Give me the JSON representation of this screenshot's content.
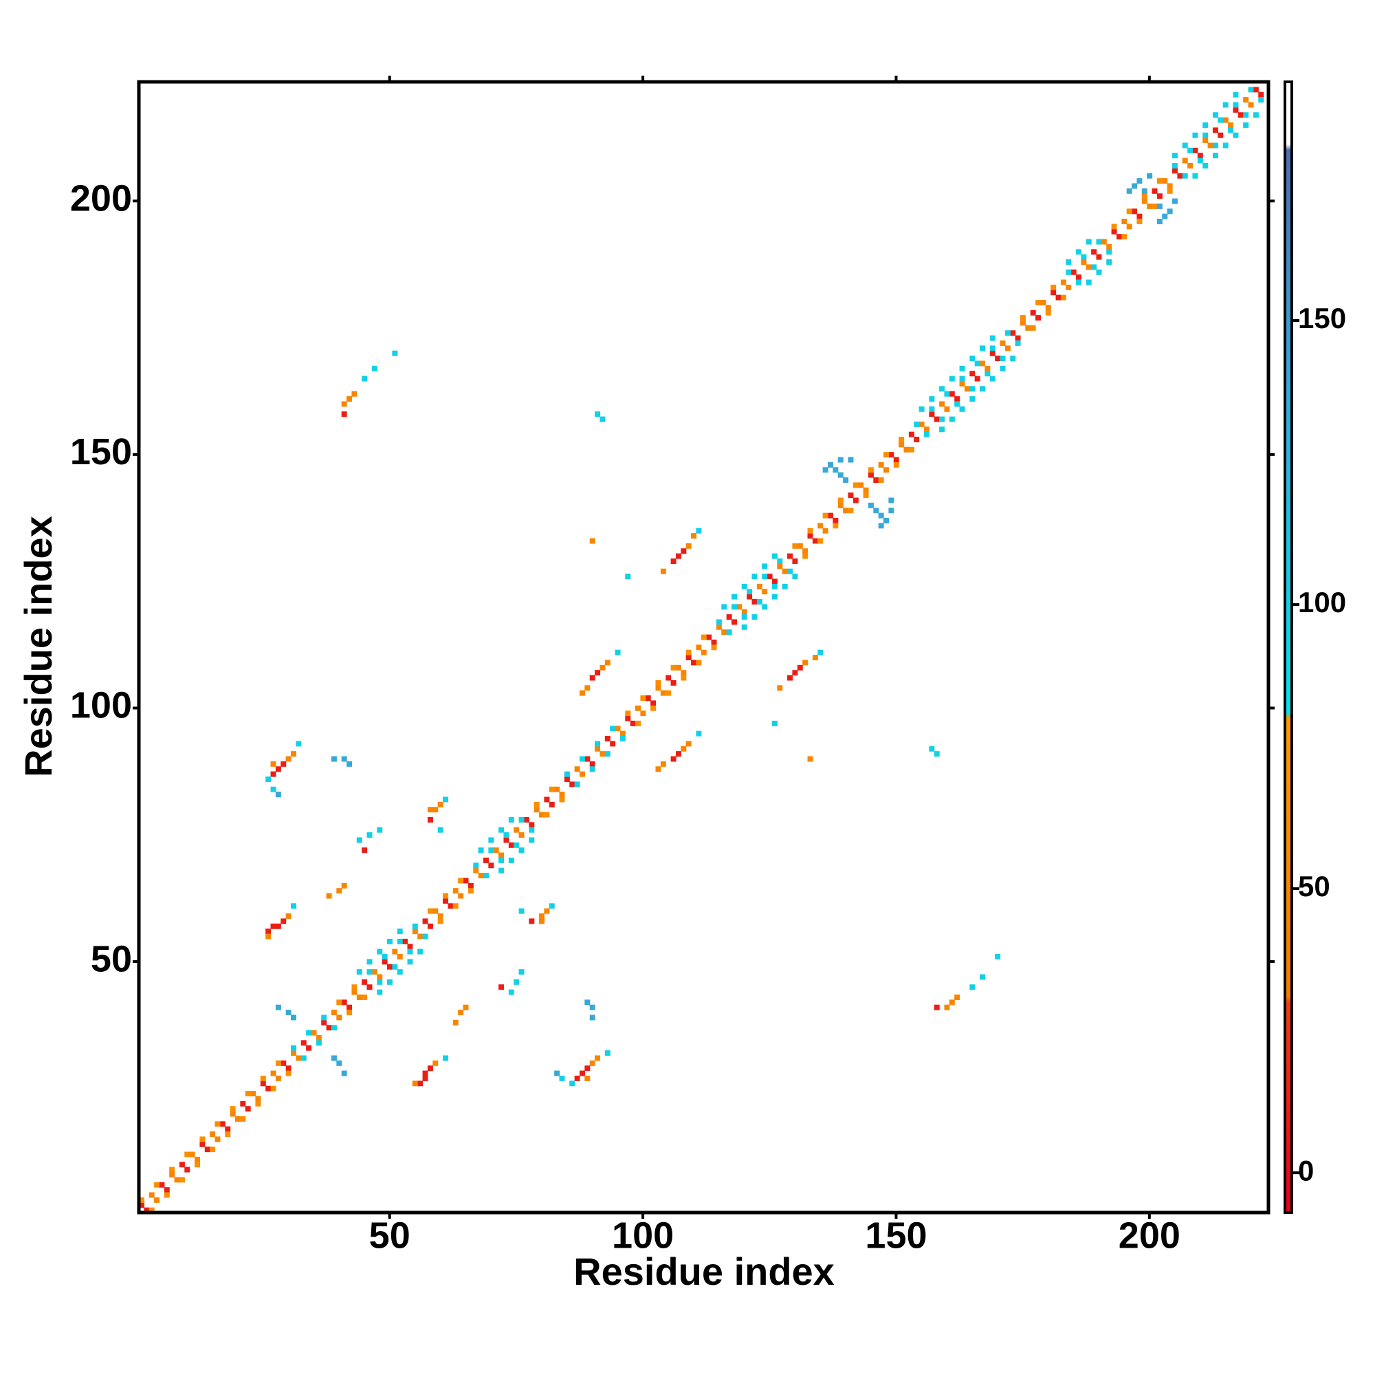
{
  "chart_data": {
    "type": "heatmap",
    "symmetric": true,
    "x_label": "Residue index",
    "y_label": "Residue index",
    "xlim": [
      0.5,
      223.5
    ],
    "ylim": [
      0.5,
      223.5
    ],
    "xticks": [
      50,
      100,
      150,
      200
    ],
    "yticks": [
      50,
      100,
      150,
      200
    ],
    "zlim": [
      -7,
      192
    ],
    "zticks": [
      0,
      50,
      100,
      150
    ],
    "colorscale": [
      {
        "value": -7,
        "color": "#e6001a"
      },
      {
        "value": 30,
        "color": "#f04010"
      },
      {
        "value": 31,
        "color": "#f57c00"
      },
      {
        "value": 80,
        "color": "#ff9a00"
      },
      {
        "value": 81,
        "color": "#00e5ee"
      },
      {
        "value": 140,
        "color": "#38a8d8"
      },
      {
        "value": 180,
        "color": "#4b6fb0"
      },
      {
        "value": 181,
        "color": "#ffffff"
      },
      {
        "value": 192,
        "color": "#ffffff"
      }
    ],
    "cells": [
      [
        1,
        2,
        10
      ],
      [
        3,
        4,
        45
      ],
      [
        5,
        6,
        10
      ],
      [
        7,
        8,
        45
      ],
      [
        9,
        10,
        10
      ],
      [
        11,
        12,
        45
      ],
      [
        13,
        14,
        10
      ],
      [
        15,
        16,
        45
      ],
      [
        17,
        18,
        10
      ],
      [
        19,
        20,
        45
      ],
      [
        21,
        22,
        10
      ],
      [
        23,
        24,
        45
      ],
      [
        25,
        26,
        10
      ],
      [
        27,
        28,
        45
      ],
      [
        29,
        30,
        10
      ],
      [
        31,
        32,
        45
      ],
      [
        33,
        34,
        10
      ],
      [
        35,
        36,
        45
      ],
      [
        37,
        38,
        10
      ],
      [
        39,
        40,
        45
      ],
      [
        41,
        42,
        10
      ],
      [
        43,
        44,
        45
      ],
      [
        45,
        46,
        10
      ],
      [
        47,
        48,
        45
      ],
      [
        49,
        50,
        10
      ],
      [
        51,
        52,
        45
      ],
      [
        53,
        54,
        10
      ],
      [
        55,
        56,
        45
      ],
      [
        57,
        58,
        10
      ],
      [
        59,
        60,
        45
      ],
      [
        61,
        62,
        10
      ],
      [
        63,
        64,
        45
      ],
      [
        65,
        66,
        10
      ],
      [
        67,
        68,
        45
      ],
      [
        69,
        70,
        10
      ],
      [
        71,
        72,
        45
      ],
      [
        73,
        74,
        10
      ],
      [
        75,
        76,
        45
      ],
      [
        77,
        78,
        10
      ],
      [
        79,
        80,
        45
      ],
      [
        81,
        82,
        10
      ],
      [
        83,
        84,
        45
      ],
      [
        85,
        86,
        10
      ],
      [
        87,
        88,
        45
      ],
      [
        89,
        90,
        10
      ],
      [
        91,
        92,
        45
      ],
      [
        93,
        94,
        10
      ],
      [
        95,
        96,
        45
      ],
      [
        97,
        98,
        10
      ],
      [
        99,
        100,
        45
      ],
      [
        101,
        102,
        10
      ],
      [
        103,
        104,
        45
      ],
      [
        105,
        106,
        10
      ],
      [
        107,
        108,
        45
      ],
      [
        109,
        110,
        10
      ],
      [
        111,
        112,
        45
      ],
      [
        113,
        114,
        10
      ],
      [
        115,
        116,
        45
      ],
      [
        117,
        118,
        10
      ],
      [
        119,
        120,
        45
      ],
      [
        121,
        122,
        10
      ],
      [
        123,
        124,
        45
      ],
      [
        125,
        126,
        10
      ],
      [
        127,
        128,
        45
      ],
      [
        129,
        130,
        10
      ],
      [
        131,
        132,
        45
      ],
      [
        133,
        134,
        10
      ],
      [
        135,
        136,
        45
      ],
      [
        137,
        138,
        10
      ],
      [
        139,
        140,
        45
      ],
      [
        141,
        142,
        10
      ],
      [
        143,
        144,
        45
      ],
      [
        145,
        146,
        10
      ],
      [
        147,
        148,
        45
      ],
      [
        149,
        150,
        10
      ],
      [
        151,
        152,
        45
      ],
      [
        153,
        154,
        10
      ],
      [
        155,
        156,
        45
      ],
      [
        157,
        158,
        10
      ],
      [
        159,
        160,
        45
      ],
      [
        161,
        162,
        10
      ],
      [
        163,
        164,
        45
      ],
      [
        165,
        166,
        10
      ],
      [
        167,
        168,
        45
      ],
      [
        169,
        170,
        10
      ],
      [
        171,
        172,
        45
      ],
      [
        173,
        174,
        10
      ],
      [
        175,
        176,
        45
      ],
      [
        177,
        178,
        10
      ],
      [
        179,
        180,
        45
      ],
      [
        181,
        182,
        10
      ],
      [
        183,
        184,
        45
      ],
      [
        185,
        186,
        10
      ],
      [
        187,
        188,
        45
      ],
      [
        189,
        190,
        10
      ],
      [
        191,
        192,
        45
      ],
      [
        193,
        194,
        10
      ],
      [
        195,
        196,
        45
      ],
      [
        197,
        198,
        10
      ],
      [
        199,
        200,
        45
      ],
      [
        201,
        202,
        10
      ],
      [
        203,
        204,
        45
      ],
      [
        205,
        206,
        10
      ],
      [
        207,
        208,
        45
      ],
      [
        209,
        210,
        10
      ],
      [
        211,
        212,
        45
      ],
      [
        213,
        214,
        10
      ],
      [
        215,
        216,
        45
      ],
      [
        217,
        218,
        10
      ],
      [
        219,
        220,
        45
      ],
      [
        221,
        222,
        10
      ],
      [
        1,
        3,
        60
      ],
      [
        4,
        6,
        60
      ],
      [
        7,
        9,
        60
      ],
      [
        10,
        12,
        60
      ],
      [
        13,
        15,
        60
      ],
      [
        16,
        18,
        60
      ],
      [
        19,
        21,
        60
      ],
      [
        22,
        24,
        60
      ],
      [
        25,
        27,
        60
      ],
      [
        28,
        30,
        60
      ],
      [
        31,
        33,
        100
      ],
      [
        34,
        36,
        100
      ],
      [
        37,
        39,
        100
      ],
      [
        40,
        42,
        60
      ],
      [
        43,
        45,
        60
      ],
      [
        46,
        48,
        100
      ],
      [
        49,
        51,
        100
      ],
      [
        52,
        54,
        100
      ],
      [
        55,
        57,
        100
      ],
      [
        58,
        60,
        60
      ],
      [
        61,
        63,
        60
      ],
      [
        64,
        66,
        60
      ],
      [
        67,
        69,
        100
      ],
      [
        70,
        72,
        100
      ],
      [
        73,
        75,
        100
      ],
      [
        76,
        78,
        100
      ],
      [
        79,
        81,
        60
      ],
      [
        82,
        84,
        60
      ],
      [
        85,
        87,
        100
      ],
      [
        88,
        90,
        100
      ],
      [
        91,
        93,
        100
      ],
      [
        94,
        96,
        100
      ],
      [
        97,
        99,
        60
      ],
      [
        100,
        102,
        60
      ],
      [
        103,
        105,
        60
      ],
      [
        106,
        108,
        60
      ],
      [
        109,
        111,
        60
      ],
      [
        112,
        114,
        60
      ],
      [
        115,
        117,
        100
      ],
      [
        118,
        120,
        100
      ],
      [
        121,
        123,
        100
      ],
      [
        124,
        126,
        100
      ],
      [
        127,
        129,
        100
      ],
      [
        130,
        132,
        60
      ],
      [
        133,
        135,
        60
      ],
      [
        136,
        138,
        60
      ],
      [
        139,
        141,
        60
      ],
      [
        142,
        144,
        60
      ],
      [
        145,
        147,
        60
      ],
      [
        148,
        150,
        60
      ],
      [
        151,
        153,
        60
      ],
      [
        154,
        156,
        100
      ],
      [
        157,
        159,
        100
      ],
      [
        160,
        162,
        100
      ],
      [
        163,
        165,
        100
      ],
      [
        166,
        168,
        100
      ],
      [
        169,
        171,
        100
      ],
      [
        172,
        174,
        100
      ],
      [
        175,
        177,
        60
      ],
      [
        178,
        180,
        60
      ],
      [
        181,
        183,
        60
      ],
      [
        184,
        186,
        100
      ],
      [
        187,
        189,
        100
      ],
      [
        190,
        192,
        100
      ],
      [
        193,
        195,
        60
      ],
      [
        196,
        198,
        60
      ],
      [
        199,
        201,
        60
      ],
      [
        202,
        204,
        60
      ],
      [
        205,
        207,
        100
      ],
      [
        208,
        210,
        100
      ],
      [
        211,
        213,
        100
      ],
      [
        214,
        216,
        100
      ],
      [
        217,
        219,
        100
      ],
      [
        220,
        222,
        100
      ],
      [
        44,
        48,
        100
      ],
      [
        46,
        50,
        100
      ],
      [
        48,
        52,
        100
      ],
      [
        50,
        54,
        100
      ],
      [
        52,
        56,
        100
      ],
      [
        68,
        72,
        100
      ],
      [
        70,
        74,
        100
      ],
      [
        72,
        76,
        100
      ],
      [
        74,
        78,
        100
      ],
      [
        116,
        120,
        100
      ],
      [
        118,
        122,
        100
      ],
      [
        120,
        124,
        100
      ],
      [
        122,
        126,
        100
      ],
      [
        124,
        128,
        100
      ],
      [
        126,
        130,
        100
      ],
      [
        155,
        159,
        100
      ],
      [
        157,
        161,
        100
      ],
      [
        159,
        163,
        100
      ],
      [
        161,
        165,
        100
      ],
      [
        163,
        167,
        100
      ],
      [
        165,
        169,
        100
      ],
      [
        167,
        171,
        100
      ],
      [
        169,
        173,
        100
      ],
      [
        184,
        188,
        100
      ],
      [
        186,
        190,
        100
      ],
      [
        188,
        192,
        100
      ],
      [
        205,
        209,
        100
      ],
      [
        207,
        211,
        100
      ],
      [
        209,
        213,
        100
      ],
      [
        211,
        215,
        100
      ],
      [
        213,
        217,
        100
      ],
      [
        215,
        219,
        100
      ],
      [
        217,
        221,
        100
      ],
      [
        27,
        87,
        10
      ],
      [
        28,
        88,
        10
      ],
      [
        29,
        89,
        10
      ],
      [
        30,
        90,
        45
      ],
      [
        31,
        91,
        45
      ],
      [
        27,
        89,
        45
      ],
      [
        26,
        86,
        100
      ],
      [
        27,
        84,
        100
      ],
      [
        28,
        83,
        140
      ],
      [
        32,
        93,
        100
      ],
      [
        26,
        56,
        10
      ],
      [
        27,
        57,
        10
      ],
      [
        28,
        57,
        10
      ],
      [
        29,
        58,
        10
      ],
      [
        30,
        59,
        45
      ],
      [
        26,
        55,
        45
      ],
      [
        31,
        61,
        100
      ],
      [
        58,
        78,
        10
      ],
      [
        59,
        80,
        45
      ],
      [
        60,
        81,
        45
      ],
      [
        58,
        80,
        45
      ],
      [
        61,
        82,
        100
      ],
      [
        60,
        76,
        100
      ],
      [
        89,
        104,
        45
      ],
      [
        90,
        106,
        10
      ],
      [
        91,
        107,
        10
      ],
      [
        92,
        108,
        45
      ],
      [
        93,
        109,
        45
      ],
      [
        95,
        111,
        100
      ],
      [
        88,
        103,
        45
      ],
      [
        106,
        129,
        10
      ],
      [
        107,
        130,
        10
      ],
      [
        108,
        131,
        10
      ],
      [
        109,
        132,
        45
      ],
      [
        110,
        134,
        45
      ],
      [
        111,
        135,
        100
      ],
      [
        104,
        127,
        45
      ],
      [
        41,
        160,
        45
      ],
      [
        42,
        161,
        45
      ],
      [
        43,
        162,
        45
      ],
      [
        41,
        158,
        10
      ],
      [
        45,
        165,
        100
      ],
      [
        47,
        167,
        100
      ],
      [
        51,
        170,
        100
      ],
      [
        38,
        63,
        45
      ],
      [
        40,
        64,
        45
      ],
      [
        41,
        65,
        45
      ],
      [
        44,
        74,
        100
      ],
      [
        46,
        75,
        100
      ],
      [
        48,
        76,
        100
      ],
      [
        45,
        72,
        10
      ],
      [
        39,
        90,
        140
      ],
      [
        41,
        90,
        140
      ],
      [
        42,
        89,
        140
      ],
      [
        28,
        41,
        140
      ],
      [
        30,
        40,
        140
      ],
      [
        31,
        39,
        140
      ],
      [
        91,
        158,
        100
      ],
      [
        92,
        157,
        100
      ],
      [
        97,
        126,
        100
      ],
      [
        90,
        133,
        45
      ],
      [
        137,
        148,
        140
      ],
      [
        138,
        147,
        140
      ],
      [
        139,
        146,
        140
      ],
      [
        140,
        145,
        140
      ],
      [
        141,
        149,
        140
      ],
      [
        136,
        147,
        140
      ],
      [
        139,
        149,
        140
      ],
      [
        197,
        203,
        140
      ],
      [
        198,
        204,
        140
      ],
      [
        199,
        202,
        140
      ],
      [
        196,
        202,
        140
      ],
      [
        200,
        205,
        140
      ]
    ]
  }
}
